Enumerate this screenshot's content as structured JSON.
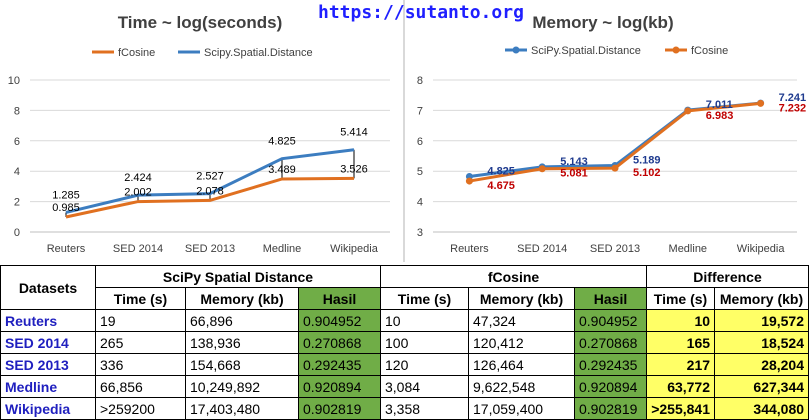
{
  "site": "https://sutanto.org",
  "colors": {
    "fcosine": "#e07020",
    "scipy": "#3c7dc0",
    "data_label_red": "#c00000",
    "data_label_blue": "#1f3b8f",
    "hasil_bg": "#70ad47",
    "diff_bg": "#ffff66"
  },
  "chart_data": [
    {
      "type": "line",
      "title": "Time ~ log(seconds)",
      "categories": [
        "Reuters",
        "SED 2014",
        "SED 2013",
        "Medline",
        "Wikipedia"
      ],
      "ylim": [
        0,
        10
      ],
      "yticks": [
        "0",
        "2",
        "4",
        "6",
        "8",
        "10"
      ],
      "grid": true,
      "legend": "top",
      "series": [
        {
          "name": "fCosine",
          "color": "#e07020",
          "values": [
            0.985,
            2.002,
            2.078,
            3.489,
            3.526
          ],
          "labels": [
            "0.985",
            "2.002",
            "2.078",
            "3.489",
            "3.526"
          ]
        },
        {
          "name": "Scipy.Spatial.Distance",
          "color": "#3c7dc0",
          "values": [
            1.285,
            2.424,
            2.527,
            4.825,
            5.414
          ],
          "labels": [
            "1.285",
            "2.424",
            "2.527",
            "4.825",
            "5.414"
          ]
        }
      ]
    },
    {
      "type": "line",
      "title": "Memory ~ log(kb)",
      "categories": [
        "Reuters",
        "SED 2014",
        "SED 2013",
        "Medline",
        "Wikipedia"
      ],
      "ylim": [
        3,
        8
      ],
      "yticks": [
        "3",
        "4",
        "5",
        "6",
        "7",
        "8"
      ],
      "grid": true,
      "legend": "top",
      "series": [
        {
          "name": "SciPy.Spatial.Distance",
          "color": "#3c7dc0",
          "values": [
            4.825,
            5.143,
            5.189,
            7.011,
            7.241
          ],
          "labels": [
            "4.825",
            "5.143",
            "5.189",
            "7.011",
            "7.241"
          ]
        },
        {
          "name": "fCosine",
          "color": "#e07020",
          "values": [
            4.675,
            5.081,
            5.102,
            6.983,
            7.232
          ],
          "labels": [
            "4.675",
            "5.081",
            "5.102",
            "6.983",
            "7.232"
          ]
        }
      ]
    }
  ],
  "table": {
    "datasets_header": "Datasets",
    "group_headers": [
      "SciPy Spatial Distance",
      "fCosine",
      "Difference"
    ],
    "sub_headers": [
      "Time (s)",
      "Memory (kb)",
      "Hasil",
      "Time (s)",
      "Memory (kb)",
      "Hasil",
      "Time (s)",
      "Memory (kb)"
    ],
    "rows": [
      {
        "name": "Reuters",
        "cells": [
          "19",
          "66,896",
          "0.904952",
          "10",
          "47,324",
          "0.904952",
          "10",
          "19,572"
        ]
      },
      {
        "name": "SED 2014",
        "cells": [
          "265",
          "138,936",
          "0.270868",
          "100",
          "120,412",
          "0.270868",
          "165",
          "18,524"
        ]
      },
      {
        "name": "SED 2013",
        "cells": [
          "336",
          "154,668",
          "0.292435",
          "120",
          "126,464",
          "0.292435",
          "217",
          "28,204"
        ]
      },
      {
        "name": "Medline",
        "cells": [
          "66,856",
          "10,249,892",
          "0.920894",
          "3,084",
          "9,622,548",
          "0.920894",
          "63,772",
          "627,344"
        ]
      },
      {
        "name": "Wikipedia",
        "cells": [
          ">259200",
          "17,403,480",
          "0.902819",
          "3,358",
          "17,059,400",
          "0.902819",
          ">255,841",
          "344,080"
        ]
      }
    ]
  }
}
